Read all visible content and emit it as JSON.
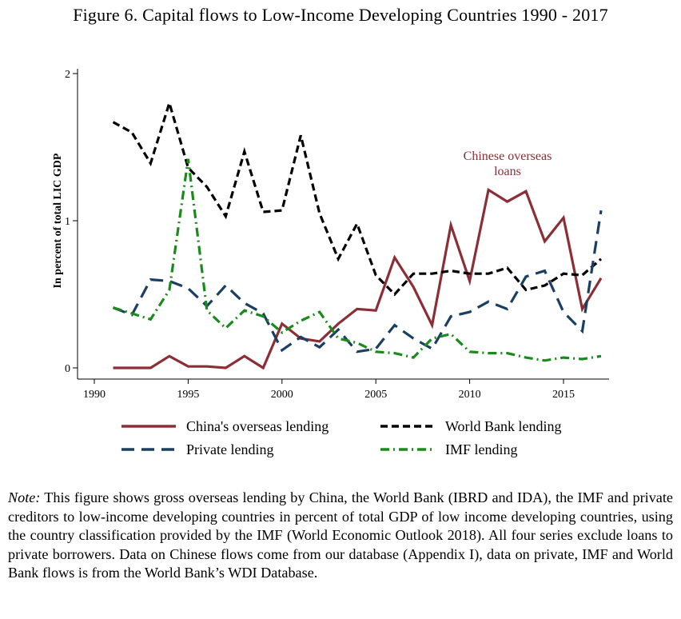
{
  "figure": {
    "title": "Figure 6. Capital flows to Low-Income Developing Countries 1990 - 2017"
  },
  "colors": {
    "china": "#8b2e35",
    "world_bank": "#000000",
    "private": "#1b3f63",
    "imf": "#1a8a1a"
  },
  "chart_data": {
    "type": "line",
    "title": "Figure 6. Capital flows to Low-Income Developing Countries 1990 - 2017",
    "xlabel": "",
    "ylabel": "In percent of total LIC GDP",
    "xlim": [
      1990,
      2017.3
    ],
    "ylim": [
      0,
      2
    ],
    "x_ticks": [
      1990,
      1995,
      2000,
      2005,
      2010,
      2015
    ],
    "y_ticks": [
      0,
      1,
      2
    ],
    "grid": false,
    "legend_position": "bottom",
    "x": [
      1991,
      1992,
      1993,
      1994,
      1995,
      1996,
      1997,
      1998,
      1999,
      2000,
      2001,
      2002,
      2003,
      2004,
      2005,
      2006,
      2007,
      2008,
      2009,
      2010,
      2011,
      2012,
      2013,
      2014,
      2015,
      2016,
      2017
    ],
    "series": [
      {
        "key": "china",
        "name": "China's overseas lending",
        "style": "solid",
        "values": [
          0.0,
          0.0,
          0.0,
          0.08,
          0.01,
          0.01,
          0.0,
          0.08,
          0.0,
          0.3,
          0.2,
          0.18,
          0.3,
          0.4,
          0.39,
          0.75,
          0.55,
          0.29,
          0.97,
          0.59,
          1.21,
          1.13,
          1.2,
          0.86,
          1.02,
          0.4,
          0.61
        ]
      },
      {
        "key": "world_bank",
        "name": "World Bank lending",
        "style": "dash",
        "values": [
          1.67,
          1.6,
          1.39,
          1.8,
          1.36,
          1.23,
          1.03,
          1.47,
          1.06,
          1.07,
          1.58,
          1.05,
          0.74,
          0.98,
          0.63,
          0.5,
          0.64,
          0.64,
          0.66,
          0.64,
          0.64,
          0.68,
          0.53,
          0.56,
          0.64,
          0.63,
          0.74
        ]
      },
      {
        "key": "private",
        "name": "Private lending",
        "style": "longdash",
        "values": [
          0.41,
          0.36,
          0.6,
          0.59,
          0.54,
          0.42,
          0.56,
          0.44,
          0.37,
          0.12,
          0.21,
          0.14,
          0.26,
          0.11,
          0.13,
          0.29,
          0.2,
          0.13,
          0.35,
          0.38,
          0.45,
          0.4,
          0.62,
          0.66,
          0.38,
          0.25,
          1.07
        ]
      },
      {
        "key": "imf",
        "name": "IMF lending",
        "style": "dashdot",
        "values": [
          0.41,
          0.37,
          0.33,
          0.53,
          1.42,
          0.39,
          0.27,
          0.39,
          0.35,
          0.24,
          0.32,
          0.38,
          0.2,
          0.17,
          0.11,
          0.1,
          0.07,
          0.2,
          0.23,
          0.11,
          0.1,
          0.1,
          0.07,
          0.05,
          0.07,
          0.06,
          0.08
        ]
      }
    ],
    "annotations": [
      {
        "lines": [
          "Chinese overseas",
          "loans"
        ],
        "color": "#8b2e35"
      }
    ]
  },
  "note": {
    "label": "Note:",
    "text": " This figure shows gross overseas lending by China, the World Bank (IBRD and IDA), the IMF and private creditors to low-income developing countries in percent of total GDP of low income developing countries, using the country classification provided by the IMF (World Economic Outlook 2018). All four series exclude loans to private borrowers. Data on Chinese flows come from our database (Appendix I), data on private, IMF and World Bank flows is from the World Bank’s WDI Database."
  }
}
